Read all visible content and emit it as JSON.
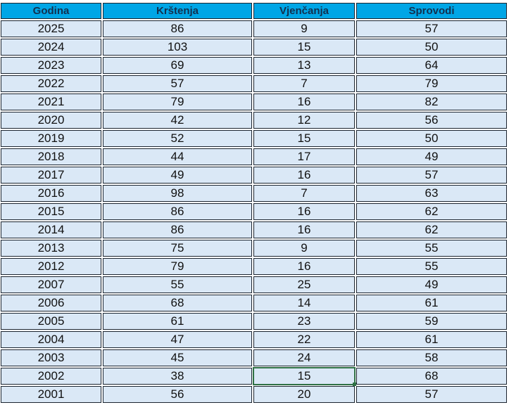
{
  "table": {
    "headers": [
      "Godina",
      "Krštenja",
      "Vjenčanja",
      "Sprovodi"
    ],
    "rows": [
      [
        "2025",
        "86",
        "9",
        "57"
      ],
      [
        "2024",
        "103",
        "15",
        "50"
      ],
      [
        "2023",
        "69",
        "13",
        "64"
      ],
      [
        "2022",
        "57",
        "7",
        "79"
      ],
      [
        "2021",
        "79",
        "16",
        "82"
      ],
      [
        "2020",
        "42",
        "12",
        "56"
      ],
      [
        "2019",
        "52",
        "15",
        "50"
      ],
      [
        "2018",
        "44",
        "17",
        "49"
      ],
      [
        "2017",
        "49",
        "16",
        "57"
      ],
      [
        "2016",
        "98",
        "7",
        "63"
      ],
      [
        "2015",
        "86",
        "16",
        "62"
      ],
      [
        "2014",
        "86",
        "16",
        "62"
      ],
      [
        "2013",
        "75",
        "9",
        "55"
      ],
      [
        "2012",
        "79",
        "16",
        "55"
      ],
      [
        "2007",
        "55",
        "25",
        "49"
      ],
      [
        "2006",
        "68",
        "14",
        "61"
      ],
      [
        "2005",
        "61",
        "23",
        "59"
      ],
      [
        "2004",
        "47",
        "22",
        "61"
      ],
      [
        "2003",
        "45",
        "24",
        "58"
      ],
      [
        "2002",
        "38",
        "15",
        "68"
      ],
      [
        "2001",
        "56",
        "20",
        "57"
      ]
    ],
    "selected_cell": {
      "row": "2002",
      "column": "Vjenčanja"
    }
  },
  "colors": {
    "header_bg": "#00a6e6",
    "cell_bg": "#dae8f6",
    "selection": "#2f7145"
  }
}
